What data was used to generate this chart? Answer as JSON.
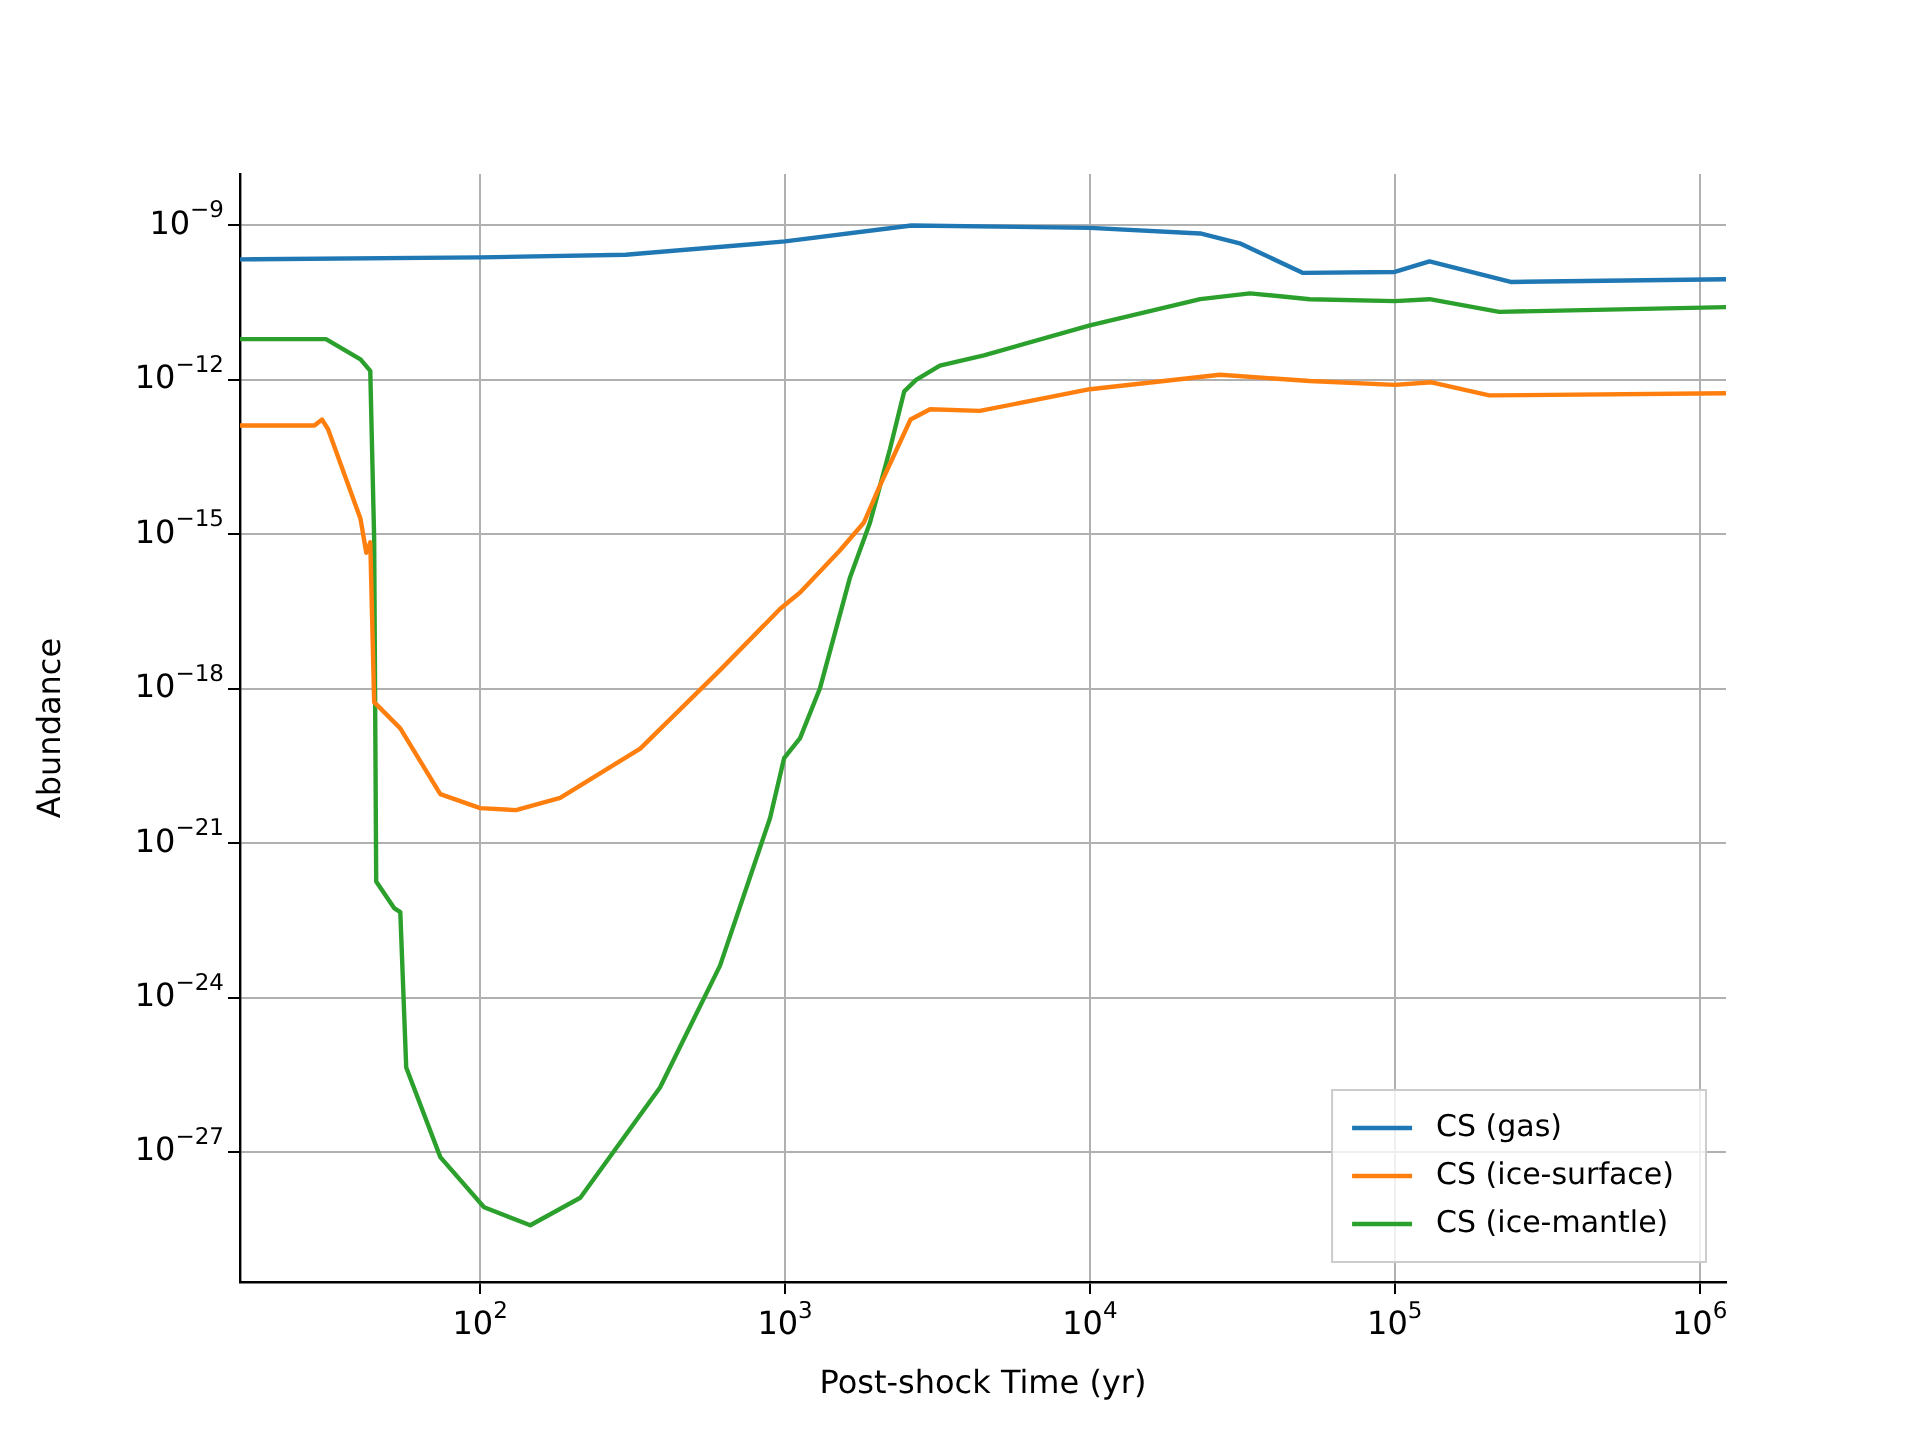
{
  "chart_data": {
    "type": "line",
    "xlabel": "Post-shock Time (yr)",
    "ylabel": "Abundance",
    "log": "xy",
    "grid": true,
    "legend": "bottom right",
    "marker": "none",
    "line_style": "solid",
    "xlim": [
      16.3,
      1220000
    ],
    "ylim": [
      3.3e-30,
      1e-08
    ],
    "xticks": [
      {
        "value": 100,
        "label": "10$^{2}$"
      },
      {
        "value": 1000,
        "label": "10$^{3}$"
      },
      {
        "value": 10000,
        "label": "10$^{4}$"
      },
      {
        "value": 100000,
        "label": "10$^{5}$"
      },
      {
        "value": 1000000,
        "label": "10$^{6}$"
      }
    ],
    "yticks": [
      {
        "value": 1e-09,
        "label": "10$^{−9}$"
      },
      {
        "value": 1e-12,
        "label": "10$^{−12}$"
      },
      {
        "value": 1e-15,
        "label": "10$^{−15}$"
      },
      {
        "value": 1e-18,
        "label": "10$^{−18}$"
      },
      {
        "value": 1e-21,
        "label": "10$^{−21}$"
      },
      {
        "value": 1e-24,
        "label": "10$^{−24}$"
      },
      {
        "value": 1e-27,
        "label": "10$^{−27}$"
      }
    ],
    "series": [
      {
        "name": "CS (gas)",
        "color": "#1f77b4",
        "x": [
          16.3,
          100,
          300,
          1000,
          2600,
          10000,
          23000,
          31000,
          50000,
          100000,
          130000,
          240000,
          1220000
        ],
        "values": [
          2.2e-10,
          2.4e-10,
          2.7e-10,
          4.9e-10,
          1e-09,
          9e-10,
          7e-10,
          4.5e-10,
          1.2e-10,
          1.25e-10,
          2e-10,
          8e-11,
          9e-11
        ]
      },
      {
        "name": "CS (ice-surface)",
        "color": "#ff7f0e",
        "x": [
          16.3,
          28.6,
          30.3,
          31.7,
          35.8,
          40.5,
          42.3,
          43.6,
          44.9,
          54.7,
          74,
          100,
          131,
          183,
          335,
          612,
          964,
          1120,
          1510,
          1815,
          2050,
          2580,
          2990,
          4350,
          10000,
          26700,
          52600,
          100000,
          132000,
          204000,
          1220000
        ],
        "values": [
          1.3e-13,
          1.3e-13,
          1.7e-13,
          1.1e-13,
          1.5e-14,
          2e-15,
          4.4e-16,
          7e-16,
          5.5e-19,
          1.7e-19,
          9e-21,
          4.8e-21,
          4.4e-21,
          7.6e-21,
          6.9e-20,
          2.3e-18,
          3.6e-17,
          7.4e-17,
          4.8e-16,
          1.7e-15,
          9e-15,
          1.7e-13,
          2.7e-13,
          2.5e-13,
          6.6e-13,
          1.26e-12,
          9.5e-13,
          8e-13,
          9e-13,
          5e-13,
          5.5e-13
        ]
      },
      {
        "name": "CS (ice-mantle)",
        "color": "#2ca02c",
        "x": [
          16.3,
          31.2,
          40.5,
          43.6,
          44.9,
          45.6,
          52.2,
          54.7,
          57.2,
          74,
          103,
          146,
          213,
          389,
          612,
          893,
          993,
          1120,
          1300,
          1630,
          1900,
          2210,
          2460,
          2690,
          3220,
          4490,
          10000,
          23000,
          33500,
          52600,
          100000,
          130000,
          220000,
          1220000
        ],
        "values": [
          6.2e-12,
          6.2e-12,
          2.5e-12,
          1.5e-12,
          8e-16,
          1.8e-22,
          5.5e-23,
          4.6e-23,
          4.4e-26,
          8e-28,
          8.5e-29,
          3.8e-29,
          1.3e-28,
          1.8e-26,
          4.2e-24,
          3.1e-21,
          4.5e-20,
          1.1e-19,
          1e-18,
          1.4e-16,
          1.7e-15,
          4.6e-14,
          6e-13,
          1e-12,
          1.9e-12,
          3e-12,
          1.15e-11,
          3.7e-11,
          4.8e-11,
          3.7e-11,
          3.4e-11,
          3.7e-11,
          2.1e-11,
          2.6e-11
        ]
      }
    ]
  }
}
